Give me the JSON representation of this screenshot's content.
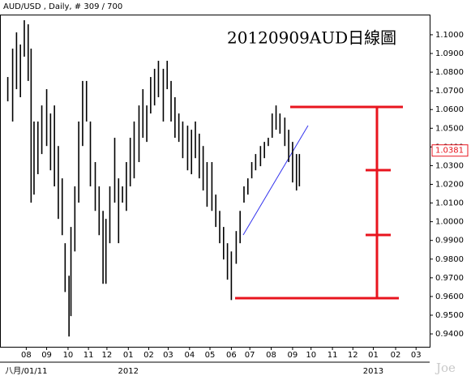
{
  "chart_data": {
    "type": "range_bar",
    "subtitle": "AUD/USD , Daily, # 309 / 700",
    "title": "20120909AUD日線圖",
    "watermark": "Joe",
    "last_price": 1.0381,
    "color": "#000000",
    "xlim": [
      0,
      442
    ],
    "ylim": [
      0.9331,
      1.1108
    ],
    "yticks": [
      {
        "value": 0.94,
        "label": "0.9400"
      },
      {
        "value": 0.95,
        "label": "0.9500"
      },
      {
        "value": 0.96,
        "label": "0.9600"
      },
      {
        "value": 0.97,
        "label": "0.9700"
      },
      {
        "value": 0.98,
        "label": "0.9800"
      },
      {
        "value": 0.99,
        "label": "0.9900"
      },
      {
        "value": 1.0,
        "label": "1.0000"
      },
      {
        "value": 1.01,
        "label": "1.0100"
      },
      {
        "value": 1.02,
        "label": "1.0200"
      },
      {
        "value": 1.03,
        "label": "1.0300"
      },
      {
        "value": 1.04,
        "label": "1.0400"
      },
      {
        "value": 1.05,
        "label": "1.0500"
      },
      {
        "value": 1.06,
        "label": "1.0600"
      },
      {
        "value": 1.07,
        "label": "1.0700"
      },
      {
        "value": 1.08,
        "label": "1.0800"
      },
      {
        "value": 1.09,
        "label": "1.0900"
      },
      {
        "value": 1.1,
        "label": "1.1000"
      }
    ],
    "xticks": [
      {
        "value": 27,
        "label": "08"
      },
      {
        "value": 48,
        "label": "09"
      },
      {
        "value": 70,
        "label": "10"
      },
      {
        "value": 91,
        "label": "11"
      },
      {
        "value": 110,
        "label": "12"
      },
      {
        "value": 132,
        "label": "01"
      },
      {
        "value": 153,
        "label": "02"
      },
      {
        "value": 173,
        "label": "03"
      },
      {
        "value": 195,
        "label": "04"
      },
      {
        "value": 216,
        "label": "05"
      },
      {
        "value": 238,
        "label": "06"
      },
      {
        "value": 257,
        "label": "07"
      },
      {
        "value": 279,
        "label": "08"
      },
      {
        "value": 301,
        "label": "09"
      },
      {
        "value": 320,
        "label": "10"
      },
      {
        "value": 342,
        "label": "11"
      },
      {
        "value": 363,
        "label": "12"
      },
      {
        "value": 384,
        "label": "01"
      },
      {
        "value": 407,
        "label": "02"
      },
      {
        "value": 428,
        "label": "03"
      }
    ],
    "year_ticks": [
      {
        "value": 27,
        "label": "八月/01/11"
      },
      {
        "value": 132,
        "label": "2012"
      },
      {
        "value": 384,
        "label": "2013"
      }
    ],
    "x": [
      8,
      13,
      17,
      21,
      25,
      29,
      32,
      35,
      39,
      43,
      48,
      52,
      56,
      60,
      64,
      67,
      71,
      73,
      77,
      81,
      85,
      89,
      93,
      98,
      102,
      106,
      109,
      113,
      118,
      122,
      126,
      130,
      134,
      138,
      143,
      147,
      151,
      155,
      159,
      163,
      168,
      172,
      176,
      180,
      184,
      188,
      193,
      197,
      201,
      205,
      209,
      213,
      218,
      222,
      226,
      230,
      234,
      238,
      243,
      247,
      251,
      255,
      259,
      263,
      268,
      272,
      276,
      280,
      284,
      288,
      293,
      297,
      301,
      305,
      308
    ],
    "high": [
      1.0774,
      1.0926,
      1.1013,
      1.0948,
      1.1078,
      1.1056,
      1.0926,
      1.0536,
      1.0536,
      1.0622,
      1.0709,
      1.0579,
      1.0622,
      1.0405,
      1.0232,
      0.9885,
      0.9711,
      0.9972,
      1.0189,
      1.0536,
      1.0753,
      1.0753,
      1.0536,
      1.0319,
      1.0189,
      1.0058,
      1.0015,
      1.0189,
      1.0449,
      1.0232,
      1.0189,
      1.0319,
      1.0449,
      1.0536,
      1.0622,
      1.0709,
      1.0622,
      1.0774,
      1.0818,
      1.0861,
      1.0818,
      1.0861,
      1.0753,
      1.0666,
      1.0579,
      1.0536,
      1.0514,
      1.0492,
      1.0536,
      1.0471,
      1.0405,
      1.0319,
      1.0319,
      1.0145,
      1.0058,
      0.9972,
      0.9885,
      0.9841,
      0.995,
      1.0058,
      1.0189,
      1.0232,
      1.0319,
      1.0362,
      1.0405,
      1.0427,
      1.0449,
      1.0579,
      1.0622,
      1.0579,
      1.0557,
      1.0492,
      1.0427,
      1.0362,
      1.0362
    ],
    "low": [
      1.0644,
      1.0536,
      1.0709,
      1.0666,
      1.0883,
      1.0753,
      1.0102,
      1.0145,
      1.0254,
      1.0362,
      1.0405,
      1.0275,
      1.0189,
      1.0015,
      0.9928,
      0.9624,
      0.9386,
      0.9495,
      0.9841,
      1.0102,
      1.0405,
      1.0536,
      1.0189,
      1.0058,
      0.9928,
      0.9668,
      0.9668,
      0.9885,
      1.0102,
      0.9885,
      1.0102,
      1.0058,
      1.0189,
      1.0232,
      1.0319,
      1.0449,
      1.0427,
      1.0579,
      1.0622,
      1.0666,
      1.0536,
      1.0709,
      1.0536,
      1.0449,
      1.0427,
      1.034,
      1.0275,
      1.0254,
      1.034,
      1.0232,
      1.0167,
      1.008,
      1.0058,
      0.9972,
      0.9885,
      0.9798,
      0.969,
      0.9581,
      0.9775,
      0.9885,
      1.0102,
      1.0145,
      1.0232,
      1.0275,
      1.0297,
      1.034,
      1.0405,
      1.0449,
      1.0492,
      1.0471,
      1.0405,
      1.0319,
      1.021,
      1.0167,
      1.0189
    ]
  }
}
